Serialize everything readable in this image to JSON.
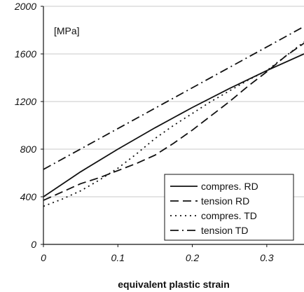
{
  "chart_data": {
    "type": "line",
    "title": "",
    "xlabel": "equivalent plastic strain",
    "ylabel": "",
    "unit_annotation": "[MPa]",
    "xlim": [
      0,
      0.35
    ],
    "ylim": [
      0,
      2000
    ],
    "x_ticks": [
      0,
      0.1,
      0.2,
      0.3
    ],
    "x_tick_labels": [
      "0",
      "0.1",
      "0.2",
      "0.3"
    ],
    "y_ticks": [
      0,
      400,
      800,
      1200,
      1600,
      2000
    ],
    "y_tick_labels": [
      "0",
      "400",
      "800",
      "1200",
      "1600",
      "2000"
    ],
    "grid": "horizontal",
    "legend": "bottom-right",
    "series": [
      {
        "name": "compres. RD",
        "style": "solid",
        "x": [
          0,
          0.05,
          0.1,
          0.15,
          0.2,
          0.25,
          0.3,
          0.35
        ],
        "values": [
          400,
          610,
          800,
          980,
          1150,
          1310,
          1460,
          1600
        ]
      },
      {
        "name": "tension RD",
        "style": "dashed",
        "x": [
          0,
          0.025,
          0.05,
          0.075,
          0.1,
          0.125,
          0.15,
          0.175,
          0.2,
          0.225,
          0.25,
          0.275,
          0.3,
          0.325,
          0.35
        ],
        "values": [
          370,
          440,
          510,
          560,
          620,
          680,
          750,
          850,
          960,
          1080,
          1200,
          1330,
          1450,
          1580,
          1690
        ]
      },
      {
        "name": "compres. TD",
        "style": "dotted",
        "x": [
          0,
          0.025,
          0.05,
          0.075,
          0.1,
          0.125,
          0.15,
          0.175,
          0.2,
          0.225,
          0.25,
          0.275,
          0.3,
          0.325,
          0.35
        ],
        "values": [
          320,
          380,
          450,
          540,
          640,
          760,
          890,
          1000,
          1100,
          1200,
          1290,
          1380,
          1460,
          1580,
          1700
        ]
      },
      {
        "name": "tension TD",
        "style": "dash-dot",
        "x": [
          0,
          0.35
        ],
        "values": [
          630,
          1830
        ]
      }
    ],
    "colors": {
      "line": "#111111",
      "grid": "#c8c8c8",
      "background": "#ffffff"
    }
  }
}
